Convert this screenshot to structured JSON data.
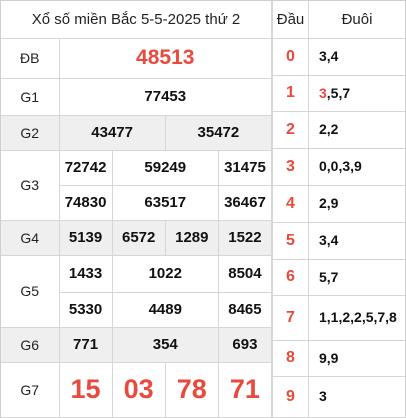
{
  "title": "Xổ số miền Bắc 5-5-2025 thứ 2",
  "prizes": {
    "db": {
      "label": "ĐB",
      "numbers": [
        "48513"
      ]
    },
    "g1": {
      "label": "G1",
      "numbers": [
        "77453"
      ]
    },
    "g2": {
      "label": "G2",
      "numbers": [
        "43477",
        "35472"
      ]
    },
    "g3": {
      "label": "G3",
      "numbers": [
        "72742",
        "59249",
        "31475",
        "74830",
        "63517",
        "36467"
      ]
    },
    "g4": {
      "label": "G4",
      "numbers": [
        "5139",
        "6572",
        "1289",
        "1522"
      ]
    },
    "g5": {
      "label": "G5",
      "numbers": [
        "1433",
        "1022",
        "8504",
        "5330",
        "4489",
        "8465"
      ]
    },
    "g6": {
      "label": "G6",
      "numbers": [
        "771",
        "354",
        "693"
      ]
    },
    "g7": {
      "label": "G7",
      "numbers": [
        "15",
        "03",
        "78",
        "71"
      ]
    }
  },
  "loto": {
    "header": {
      "dau": "Đầu",
      "duoi": "Đuôi"
    },
    "rows": [
      {
        "dau": "0",
        "duoi_hl": "",
        "duoi": "3,4"
      },
      {
        "dau": "1",
        "duoi_hl": "3",
        "duoi": ",5,7"
      },
      {
        "dau": "2",
        "duoi_hl": "",
        "duoi": "2,2"
      },
      {
        "dau": "3",
        "duoi_hl": "",
        "duoi": "0,0,3,9"
      },
      {
        "dau": "4",
        "duoi_hl": "",
        "duoi": "2,9"
      },
      {
        "dau": "5",
        "duoi_hl": "",
        "duoi": "3,4"
      },
      {
        "dau": "6",
        "duoi_hl": "",
        "duoi": "5,7"
      },
      {
        "dau": "7",
        "duoi_hl": "",
        "duoi": "1,1,2,2,5,7,8"
      },
      {
        "dau": "8",
        "duoi_hl": "",
        "duoi": "9,9"
      },
      {
        "dau": "9",
        "duoi_hl": "",
        "duoi": "3"
      }
    ]
  },
  "colors": {
    "accent": "#e84a3d",
    "shade": "#efefef",
    "border": "#d6d6d6"
  }
}
